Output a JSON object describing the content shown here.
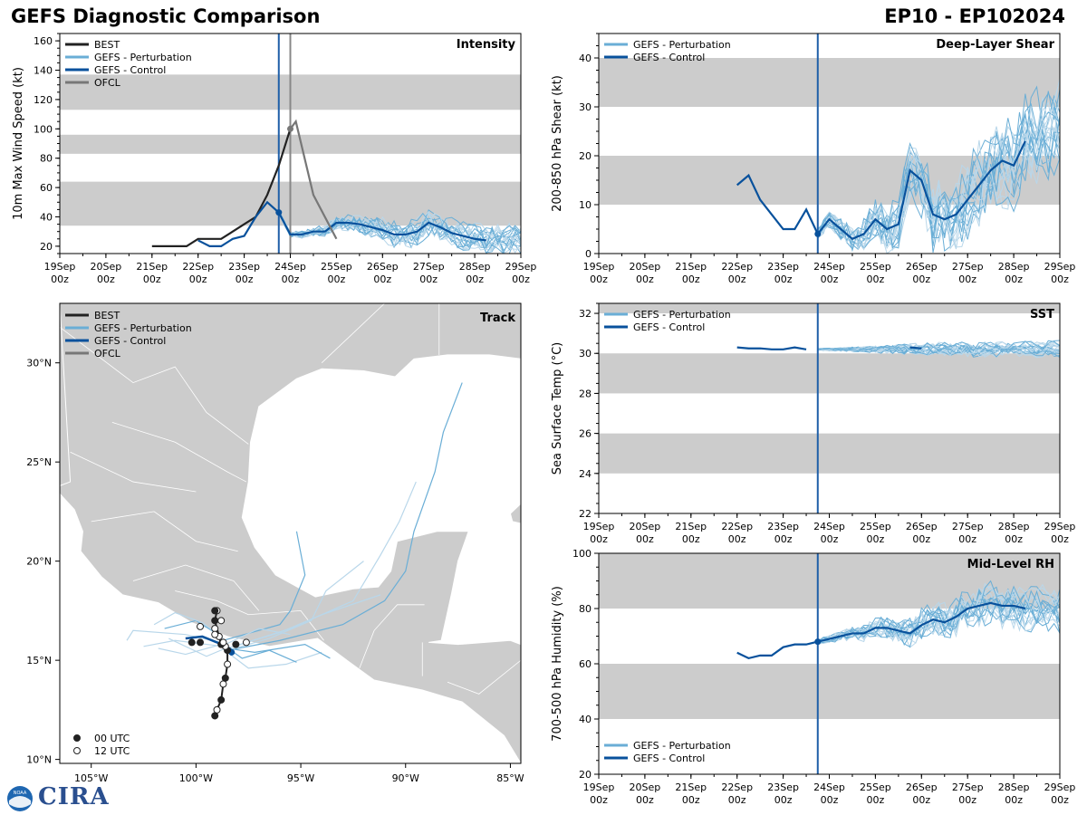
{
  "figure": {
    "title": "GEFS Diagnostic Comparison",
    "storm": "EP10 - EP102024",
    "logo_text": "CIRA",
    "logo_seal_text": "NOAA"
  },
  "colors": {
    "best": "#222222",
    "perturbation": "#6aaed6",
    "perturbation_light": "#b9d7ea",
    "control": "#08519c",
    "ofcl": "#777777",
    "band": "#cccccc",
    "vline_blue": "#1f5fa8",
    "vline_gray": "#888888"
  },
  "time_axis": {
    "ticks": [
      "19Sep\n00z",
      "20Sep\n00z",
      "21Sep\n00z",
      "22Sep\n00z",
      "23Sep\n00z",
      "24Sep\n00z",
      "25Sep\n00z",
      "26Sep\n00z",
      "27Sep\n00z",
      "28Sep\n00z",
      "29Sep\n00z"
    ],
    "range_days": [
      0,
      10
    ],
    "init_time_day": 4.75,
    "ofcl_time_day": 5.0
  },
  "chart_data": [
    {
      "id": "intensity",
      "type": "line",
      "title": "Intensity",
      "ylabel": "10m Max Wind Speed (kt)",
      "ylim": [
        15,
        165
      ],
      "yticks": [
        20,
        40,
        60,
        80,
        100,
        120,
        140,
        160
      ],
      "bands": [
        [
          34,
          64
        ],
        [
          83,
          96
        ],
        [
          113,
          137
        ]
      ],
      "legend": [
        "BEST",
        "GEFS - Perturbation",
        "GEFS - Control",
        "OFCL"
      ],
      "series": [
        {
          "name": "BEST",
          "x": [
            2.0,
            2.25,
            2.5,
            2.75,
            3.0,
            3.25,
            3.5,
            3.75,
            4.0,
            4.25,
            4.5,
            4.75,
            5.0
          ],
          "values": [
            20,
            20,
            20,
            20,
            25,
            25,
            25,
            30,
            35,
            40,
            55,
            75,
            100
          ]
        },
        {
          "name": "GEFS - Control",
          "x": [
            3.0,
            3.25,
            3.5,
            3.75,
            4.0,
            4.25,
            4.5,
            4.75,
            5.0,
            5.25,
            5.5,
            5.75,
            6.0,
            6.25,
            6.5,
            6.75,
            7.0,
            7.25,
            7.5,
            7.75,
            8.0,
            8.25,
            8.5,
            8.75,
            9.0,
            9.25
          ],
          "values": [
            24,
            20,
            20,
            25,
            27,
            40,
            50,
            43,
            28,
            28,
            30,
            30,
            36,
            36,
            35,
            33,
            31,
            28,
            28,
            30,
            36,
            33,
            29,
            27,
            25,
            24
          ]
        },
        {
          "name": "OFCL",
          "x": [
            5.0,
            5.12,
            5.5,
            6.0
          ],
          "values": [
            100,
            105,
            55,
            25
          ]
        }
      ],
      "init_point": 43,
      "ofcl_point": 100
    },
    {
      "id": "shear",
      "type": "line",
      "title": "Deep-Layer Shear",
      "ylabel": "200-850 hPa Shear (kt)",
      "ylim": [
        0,
        45
      ],
      "yticks": [
        0,
        10,
        20,
        30,
        40
      ],
      "bands": [
        [
          10,
          20
        ],
        [
          30,
          40
        ]
      ],
      "legend": [
        "GEFS - Perturbation",
        "GEFS - Control"
      ],
      "series": [
        {
          "name": "GEFS - Control",
          "x": [
            3.0,
            3.25,
            3.5,
            3.75,
            4.0,
            4.25,
            4.5,
            4.75,
            5.0,
            5.25,
            5.5,
            5.75,
            6.0,
            6.25,
            6.5,
            6.75,
            7.0,
            7.25,
            7.5,
            7.75,
            8.0,
            8.25,
            8.5,
            8.75,
            9.0,
            9.25
          ],
          "values": [
            14,
            16,
            11,
            8,
            5,
            5,
            9,
            4,
            7,
            5,
            3,
            4,
            7,
            5,
            6,
            17,
            15,
            8,
            7,
            8,
            11,
            14,
            17,
            19,
            18,
            23
          ]
        }
      ],
      "init_point": 4
    },
    {
      "id": "sst",
      "type": "line",
      "title": "SST",
      "ylabel": "Sea Surface Temp (°C)",
      "ylim": [
        22,
        32.5
      ],
      "yticks": [
        22,
        24,
        26,
        28,
        30,
        32
      ],
      "bands": [
        [
          24,
          26
        ],
        [
          28,
          30
        ],
        [
          32,
          32.5
        ]
      ],
      "legend": [
        "GEFS - Perturbation",
        "GEFS - Control"
      ],
      "series": [
        {
          "name": "GEFS - Control",
          "x": [
            3.0,
            3.25,
            3.5,
            3.75,
            4.0,
            4.25,
            4.5
          ],
          "values": [
            30.3,
            30.25,
            30.25,
            30.2,
            30.2,
            30.3,
            30.2
          ]
        },
        {
          "name": "GEFS - Control (late)",
          "x": [
            6.75,
            7.0
          ],
          "values": [
            30.3,
            30.25
          ]
        }
      ]
    },
    {
      "id": "rh",
      "type": "line",
      "title": "Mid-Level RH",
      "ylabel": "700-500 hPa Humidity (%)",
      "ylim": [
        20,
        100
      ],
      "yticks": [
        20,
        40,
        60,
        80,
        100
      ],
      "bands": [
        [
          40,
          60
        ],
        [
          80,
          100
        ]
      ],
      "legend": [
        "GEFS - Perturbation",
        "GEFS - Control"
      ],
      "series": [
        {
          "name": "GEFS - Control",
          "x": [
            3.0,
            3.25,
            3.5,
            3.75,
            4.0,
            4.25,
            4.5,
            4.75,
            5.0,
            5.25,
            5.5,
            5.75,
            6.0,
            6.25,
            6.5,
            6.75,
            7.0,
            7.25,
            7.5,
            7.75,
            8.0,
            8.25,
            8.5,
            8.75,
            9.0,
            9.25
          ],
          "values": [
            64,
            62,
            63,
            63,
            66,
            67,
            67,
            68,
            69,
            70,
            71,
            71,
            73,
            73,
            72,
            71,
            74,
            76,
            75,
            77,
            80,
            81,
            82,
            81,
            81,
            80
          ]
        }
      ],
      "init_point": 68
    },
    {
      "id": "track",
      "type": "scatter",
      "title": "Track",
      "xlabel": "Longitude",
      "ylabel": "Latitude",
      "xlim": [
        -106.5,
        -84.5
      ],
      "ylim": [
        9.8,
        33
      ],
      "xticks": [
        -105,
        -100,
        -95,
        -90,
        -85
      ],
      "xtick_labels": [
        "105°W",
        "100°W",
        "95°W",
        "90°W",
        "85°W"
      ],
      "yticks": [
        10,
        15,
        20,
        25,
        30
      ],
      "ytick_labels": [
        "10°N",
        "15°N",
        "20°N",
        "25°N",
        "30°N"
      ],
      "legend": [
        "BEST",
        "GEFS - Perturbation",
        "GEFS - Control",
        "OFCL"
      ],
      "marker_legend": [
        "00 UTC",
        "12 UTC"
      ],
      "best_track": {
        "lon": [
          -99.1,
          -99.0,
          -98.8,
          -98.7,
          -98.6,
          -98.5,
          -98.5,
          -98.6,
          -98.8,
          -98.9,
          -99.1,
          -99.0,
          -99.1
        ],
        "lat": [
          12.2,
          12.5,
          13.0,
          13.8,
          14.1,
          14.8,
          15.5,
          15.7,
          15.8,
          16.2,
          17.0,
          17.5,
          17.5
        ],
        "utc": [
          "00",
          "12",
          "00",
          "12",
          "00",
          "12",
          "00",
          "12",
          "00",
          "12",
          "00",
          "12",
          "00"
        ]
      },
      "control_track": {
        "lon": [
          -100.5,
          -99.7,
          -99.0,
          -98.4,
          -98.2
        ],
        "lat": [
          16.1,
          16.2,
          15.9,
          15.6,
          15.4
        ]
      },
      "extra_points": [
        {
          "lon": -100.2,
          "lat": 15.9,
          "utc": "00"
        },
        {
          "lon": -99.8,
          "lat": 15.9,
          "utc": "00"
        },
        {
          "lon": -99.8,
          "lat": 16.7,
          "utc": "12"
        },
        {
          "lon": -99.1,
          "lat": 16.6,
          "utc": "12"
        },
        {
          "lon": -99.1,
          "lat": 16.3,
          "utc": "12"
        },
        {
          "lon": -98.8,
          "lat": 17.0,
          "utc": "12"
        },
        {
          "lon": -98.1,
          "lat": 15.8,
          "utc": "00"
        },
        {
          "lon": -97.6,
          "lat": 15.9,
          "utc": "12"
        },
        {
          "lon": -98.7,
          "lat": 15.9,
          "utc": "12"
        }
      ]
    }
  ]
}
